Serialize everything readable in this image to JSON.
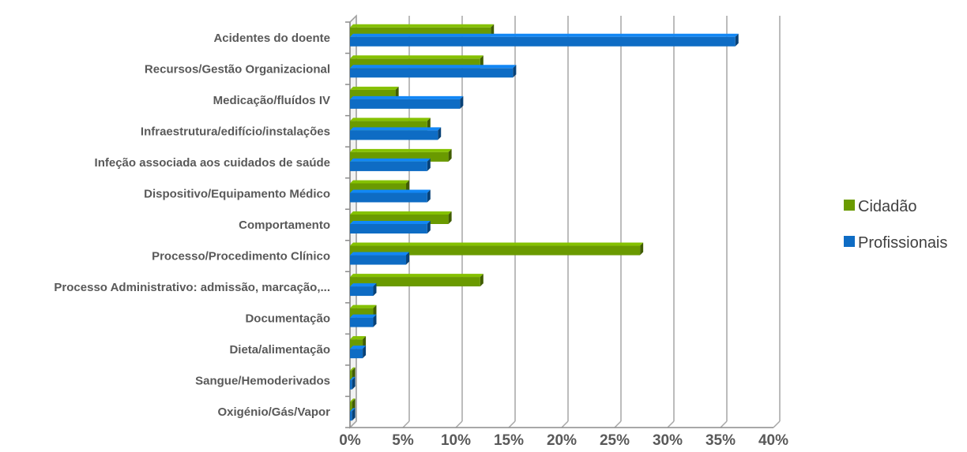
{
  "chart_data": {
    "type": "bar",
    "orientation": "horizontal",
    "categories": [
      "Acidentes do doente",
      "Recursos/Gestão Organizacional",
      "Medicação/fluídos IV",
      "Infraestrutura/edifício/instalações",
      "Infeção associada aos cuidados de saúde",
      "Dispositivo/Equipamento Médico",
      "Comportamento",
      "Processo/Procedimento Clínico",
      "Processo Administrativo: admissão, marcação,...",
      "Documentação",
      "Dieta/alimentação",
      "Sangue/Hemoderivados",
      "Oxigénio/Gás/Vapor"
    ],
    "series": [
      {
        "name": "Cidadão",
        "color": "#6a9a00",
        "values": [
          13.3,
          12.3,
          4.3,
          7.3,
          9.3,
          5.3,
          9.3,
          27.4,
          12.3,
          2.2,
          1.2,
          0.2,
          0.2
        ]
      },
      {
        "name": "Profissionais",
        "color": "#0e6cc4",
        "values": [
          36.4,
          15.4,
          10.4,
          8.3,
          7.3,
          7.3,
          7.3,
          5.3,
          2.2,
          2.2,
          1.2,
          0.2,
          0.2
        ]
      }
    ],
    "x_ticks": [
      "0%",
      "5%",
      "10%",
      "15%",
      "20%",
      "25%",
      "30%",
      "35%",
      "40%"
    ],
    "xlim": [
      0,
      40
    ],
    "x_unit": "%",
    "title": "",
    "xlabel": "",
    "ylabel": "",
    "grid": true,
    "legend_position": "right"
  }
}
